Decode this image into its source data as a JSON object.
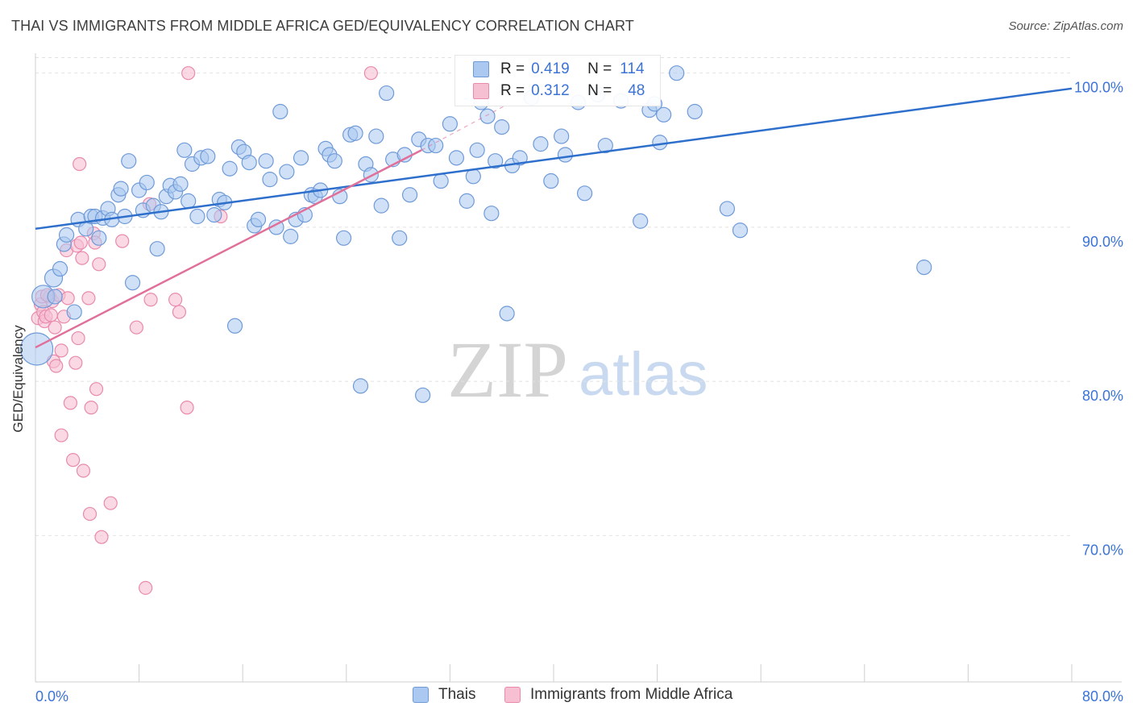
{
  "title": "THAI VS IMMIGRANTS FROM MIDDLE AFRICA GED/EQUIVALENCY CORRELATION CHART",
  "source": "Source: ZipAtlas.com",
  "watermark": {
    "zip": "ZIP",
    "atlas": "atlas"
  },
  "legend": {
    "rows": [
      {
        "r_label": "R =",
        "r_value": "0.419",
        "n_label": "N =",
        "n_value": "114"
      },
      {
        "r_label": "R =",
        "r_value": "0.312",
        "n_label": "N =",
        "n_value": "48"
      }
    ]
  },
  "bottom_legend": [
    "Thais",
    "Immigrants from Middle Africa"
  ],
  "colors": {
    "thais_fill": "#aac8f0",
    "thais_stroke": "#6f9ad8",
    "thais_line": "#2e6fcc",
    "africa_fill": "#f7c0d2",
    "africa_stroke": "#e98aac",
    "africa_line": "#e0709a",
    "tick_label": "#3b73d6",
    "grid": "#e2e2e2"
  },
  "chart_data": {
    "type": "scatter",
    "title": "THAI VS IMMIGRANTS FROM MIDDLE AFRICA GED/EQUIVALENCY CORRELATION CHART",
    "xlabel": "",
    "ylabel": "GED/Equivalency",
    "xlim": [
      0,
      80
    ],
    "ylim": [
      60.5,
      101.5
    ],
    "x_tick_labels": [
      "0.0%",
      "80.0%"
    ],
    "y_ticks": [
      70,
      80,
      90,
      100
    ],
    "y_tick_labels": [
      "70.0%",
      "80.0%",
      "90.0%",
      "100.0%"
    ],
    "grid": true,
    "legend_position": "top-center",
    "series": [
      {
        "name": "Thais",
        "r": 0.419,
        "n": 114,
        "trend": {
          "x": [
            0,
            80
          ],
          "y": [
            89.9,
            99.0
          ]
        },
        "points": [
          [
            0.1,
            82.1
          ],
          [
            0.6,
            85.5
          ],
          [
            1.4,
            86.7
          ],
          [
            1.9,
            87.3
          ],
          [
            2.2,
            88.9
          ],
          [
            2.4,
            89.5
          ],
          [
            3.0,
            84.5
          ],
          [
            3.3,
            90.5
          ],
          [
            3.9,
            89.9
          ],
          [
            4.3,
            90.7
          ],
          [
            4.6,
            90.7
          ],
          [
            4.9,
            89.3
          ],
          [
            5.2,
            90.6
          ],
          [
            5.6,
            91.2
          ],
          [
            5.9,
            90.5
          ],
          [
            6.4,
            92.1
          ],
          [
            6.6,
            92.5
          ],
          [
            6.9,
            90.7
          ],
          [
            7.2,
            94.3
          ],
          [
            7.5,
            86.4
          ],
          [
            8.0,
            92.4
          ],
          [
            8.3,
            91.1
          ],
          [
            8.6,
            92.9
          ],
          [
            9.1,
            91.4
          ],
          [
            9.4,
            88.6
          ],
          [
            9.7,
            91.0
          ],
          [
            10.1,
            92.0
          ],
          [
            10.4,
            92.7
          ],
          [
            10.8,
            92.3
          ],
          [
            11.2,
            92.8
          ],
          [
            11.5,
            95.0
          ],
          [
            11.8,
            91.7
          ],
          [
            12.1,
            94.1
          ],
          [
            12.5,
            90.7
          ],
          [
            12.8,
            94.5
          ],
          [
            13.3,
            94.6
          ],
          [
            13.8,
            90.8
          ],
          [
            14.2,
            91.8
          ],
          [
            14.6,
            91.6
          ],
          [
            15.0,
            93.8
          ],
          [
            15.4,
            83.6
          ],
          [
            15.7,
            95.2
          ],
          [
            16.1,
            94.9
          ],
          [
            16.5,
            94.2
          ],
          [
            16.9,
            90.1
          ],
          [
            17.2,
            90.5
          ],
          [
            17.8,
            94.3
          ],
          [
            18.1,
            93.1
          ],
          [
            18.6,
            90.0
          ],
          [
            18.9,
            97.5
          ],
          [
            19.4,
            93.6
          ],
          [
            19.7,
            89.4
          ],
          [
            20.1,
            90.5
          ],
          [
            20.5,
            94.5
          ],
          [
            20.8,
            90.8
          ],
          [
            21.3,
            92.1
          ],
          [
            21.6,
            92.0
          ],
          [
            22.0,
            92.4
          ],
          [
            22.4,
            95.1
          ],
          [
            22.7,
            94.7
          ],
          [
            23.1,
            94.3
          ],
          [
            23.5,
            92.0
          ],
          [
            23.8,
            89.3
          ],
          [
            24.3,
            96.0
          ],
          [
            24.7,
            96.1
          ],
          [
            25.1,
            79.7
          ],
          [
            25.5,
            94.1
          ],
          [
            25.9,
            93.4
          ],
          [
            26.3,
            95.9
          ],
          [
            26.7,
            91.4
          ],
          [
            27.1,
            98.7
          ],
          [
            27.6,
            94.4
          ],
          [
            28.1,
            89.3
          ],
          [
            28.5,
            94.7
          ],
          [
            28.9,
            92.1
          ],
          [
            29.6,
            95.7
          ],
          [
            29.9,
            79.1
          ],
          [
            30.3,
            95.3
          ],
          [
            30.9,
            95.3
          ],
          [
            31.3,
            93.0
          ],
          [
            32.0,
            96.7
          ],
          [
            32.5,
            94.5
          ],
          [
            33.3,
            91.7
          ],
          [
            33.8,
            93.3
          ],
          [
            34.1,
            95.0
          ],
          [
            34.4,
            98.1
          ],
          [
            34.9,
            97.2
          ],
          [
            35.2,
            90.9
          ],
          [
            35.5,
            94.3
          ],
          [
            36.0,
            96.5
          ],
          [
            36.4,
            84.4
          ],
          [
            36.8,
            94.0
          ],
          [
            37.4,
            94.5
          ],
          [
            38.3,
            98.4
          ],
          [
            39.0,
            95.4
          ],
          [
            39.8,
            93.0
          ],
          [
            40.6,
            95.9
          ],
          [
            40.9,
            94.7
          ],
          [
            41.9,
            98.1
          ],
          [
            42.4,
            92.2
          ],
          [
            43.4,
            98.6
          ],
          [
            44.0,
            95.3
          ],
          [
            45.2,
            98.2
          ],
          [
            46.7,
            90.4
          ],
          [
            47.4,
            97.6
          ],
          [
            47.8,
            98.0
          ],
          [
            48.2,
            95.5
          ],
          [
            48.5,
            97.3
          ],
          [
            49.5,
            100.0
          ],
          [
            50.9,
            97.5
          ],
          [
            53.4,
            91.2
          ],
          [
            54.4,
            89.8
          ],
          [
            68.6,
            87.4
          ],
          [
            1.5,
            85.5
          ]
        ],
        "sizes": {
          "0.1,82.1": 40,
          "0.6,85.5": 28,
          "1.4,86.7": 22
        }
      },
      {
        "name": "Immigrants from Middle Africa",
        "r": 0.312,
        "n": 48,
        "trend": {
          "x": [
            0,
            29.8
          ],
          "y": [
            82.2,
            95.0
          ]
        },
        "trend_dashed_to": {
          "x": 36.5,
          "y": 98.0
        },
        "points": [
          [
            0.2,
            84.1
          ],
          [
            0.4,
            85.0
          ],
          [
            0.5,
            85.5
          ],
          [
            0.6,
            84.5
          ],
          [
            0.7,
            83.9
          ],
          [
            0.8,
            84.2
          ],
          [
            1.1,
            85.5
          ],
          [
            1.2,
            84.3
          ],
          [
            1.3,
            85.2
          ],
          [
            1.4,
            81.3
          ],
          [
            1.5,
            83.5
          ],
          [
            1.6,
            81.0
          ],
          [
            1.8,
            85.6
          ],
          [
            2.0,
            82.0
          ],
          [
            2.2,
            84.2
          ],
          [
            2.4,
            88.5
          ],
          [
            2.5,
            85.4
          ],
          [
            2.7,
            78.6
          ],
          [
            2.9,
            74.9
          ],
          [
            3.1,
            81.2
          ],
          [
            3.2,
            88.8
          ],
          [
            3.3,
            82.8
          ],
          [
            3.4,
            94.1
          ],
          [
            3.5,
            89.0
          ],
          [
            3.6,
            88.0
          ],
          [
            3.7,
            74.2
          ],
          [
            4.1,
            85.4
          ],
          [
            4.2,
            71.4
          ],
          [
            4.3,
            78.3
          ],
          [
            4.5,
            89.6
          ],
          [
            4.6,
            89.0
          ],
          [
            4.7,
            79.5
          ],
          [
            4.9,
            87.6
          ],
          [
            5.1,
            69.9
          ],
          [
            5.8,
            72.1
          ],
          [
            6.7,
            89.1
          ],
          [
            7.8,
            83.5
          ],
          [
            8.5,
            66.6
          ],
          [
            8.8,
            91.5
          ],
          [
            8.9,
            85.3
          ],
          [
            10.8,
            85.3
          ],
          [
            11.1,
            84.5
          ],
          [
            11.7,
            78.3
          ],
          [
            11.8,
            100.0
          ],
          [
            14.3,
            90.7
          ],
          [
            25.9,
            100.0
          ],
          [
            2.0,
            76.5
          ],
          [
            0.9,
            85.6
          ]
        ]
      }
    ]
  }
}
